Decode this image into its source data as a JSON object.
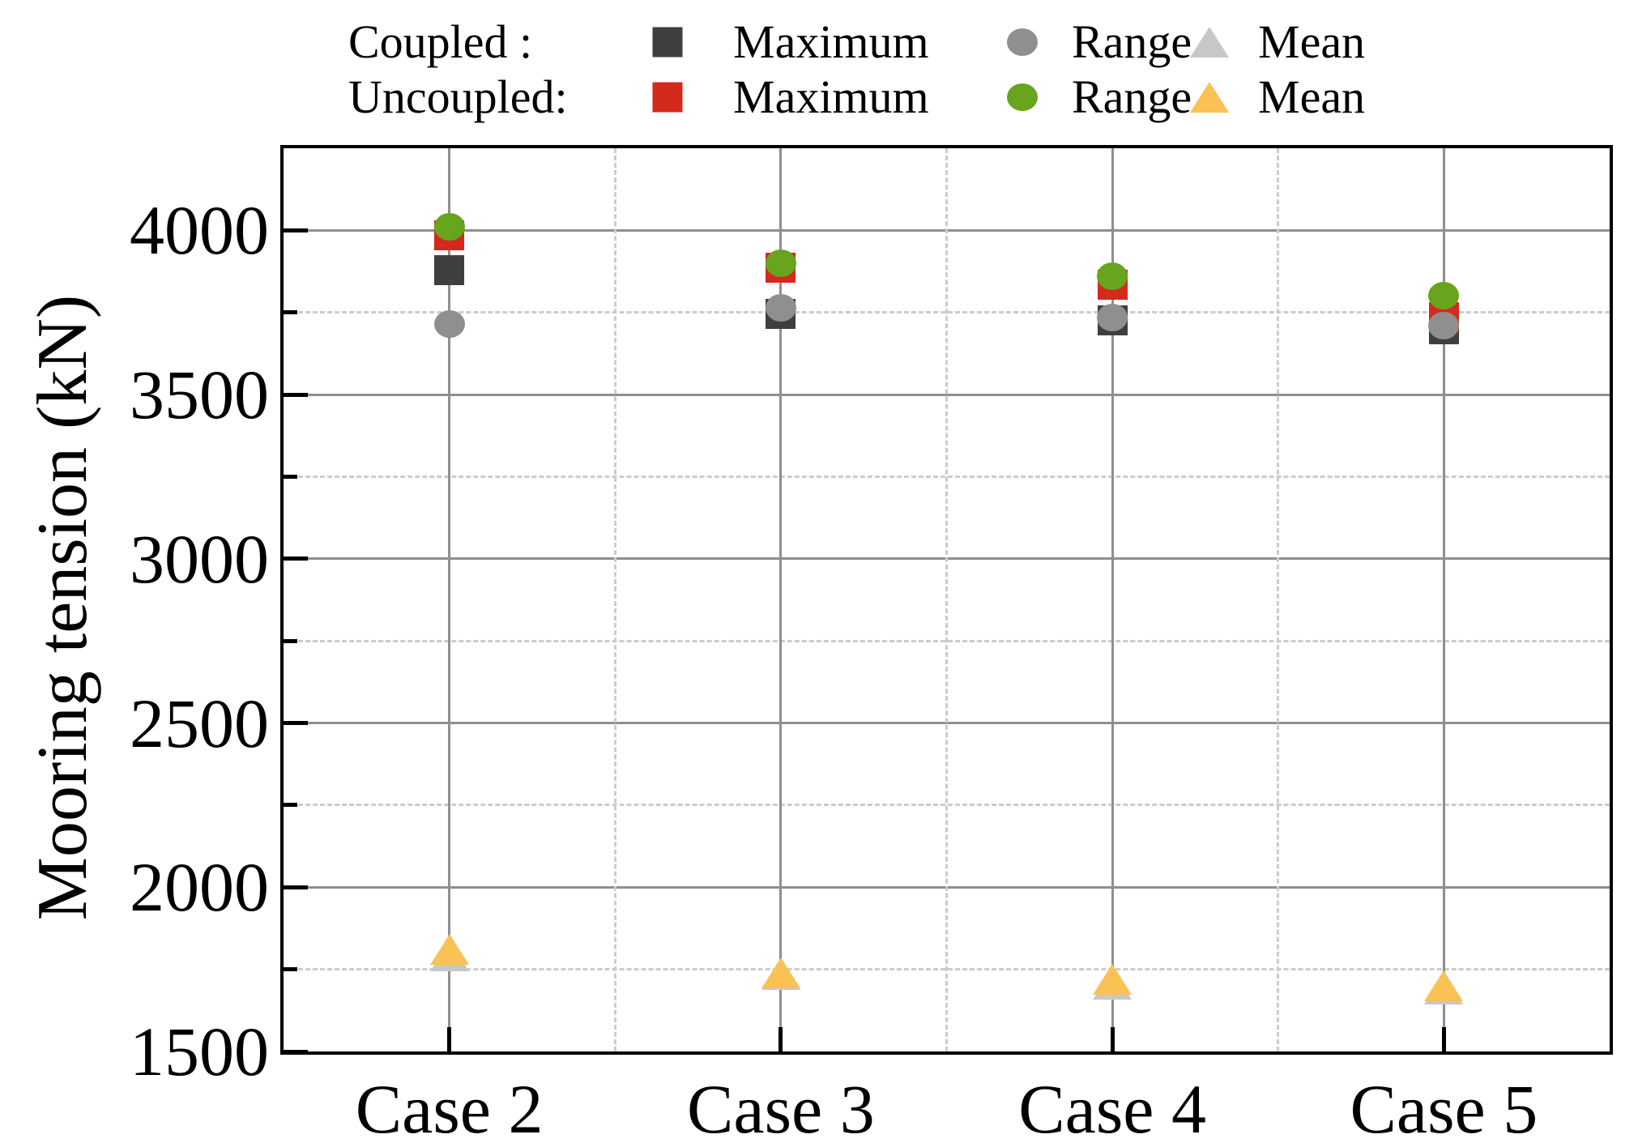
{
  "legend": {
    "rows": [
      {
        "label": "Coupled :",
        "items": [
          {
            "marker": "square-icon",
            "color": "#3f3f3f",
            "label": "Maximum"
          },
          {
            "marker": "circle-icon",
            "color": "#8f8f8f",
            "label": "Range"
          },
          {
            "marker": "triangle-icon",
            "color": "#c8c8c8",
            "label": "Mean"
          }
        ]
      },
      {
        "label": "Uncoupled:",
        "items": [
          {
            "marker": "square-icon",
            "color": "#d42a1e",
            "label": "Maximum"
          },
          {
            "marker": "circle-icon",
            "color": "#68a41c",
            "label": "Range"
          },
          {
            "marker": "triangle-icon",
            "color": "#fac155",
            "label": "Mean"
          }
        ]
      }
    ]
  },
  "chart_data": {
    "type": "scatter",
    "categories": [
      "Case 2",
      "Case 3",
      "Case 4",
      "Case 5"
    ],
    "ylabel": "Mooring tension (kN)",
    "ylim": [
      1500,
      4250
    ],
    "yticks_major": [
      1500,
      2000,
      2500,
      3000,
      3500,
      4000
    ],
    "yticks_minor": [
      1750,
      2250,
      2750,
      3250,
      3750
    ],
    "grid": true,
    "legend_position": "top",
    "series": [
      {
        "name": "Coupled Maximum",
        "marker": "square",
        "color": "#3f3f3f",
        "values": [
          3880,
          3745,
          3725,
          3700
        ]
      },
      {
        "name": "Uncoupled Maximum",
        "marker": "square",
        "color": "#d42a1e",
        "values": [
          3985,
          3885,
          3835,
          3735
        ]
      },
      {
        "name": "Coupled Range",
        "marker": "circle",
        "color": "#8f8f8f",
        "values": [
          3715,
          3765,
          3735,
          3710
        ]
      },
      {
        "name": "Uncoupled Range",
        "marker": "circle",
        "color": "#68a41c",
        "values": [
          4010,
          3900,
          3860,
          3800
        ]
      },
      {
        "name": "Coupled Mean",
        "marker": "triangle",
        "color": "#c8c8c8",
        "values": [
          1790,
          1735,
          1705,
          1690
        ]
      },
      {
        "name": "Uncoupled Mean",
        "marker": "triangle",
        "color": "#fac155",
        "values": [
          1810,
          1740,
          1720,
          1700
        ]
      }
    ]
  },
  "colors": {
    "axis": "#000000",
    "grid_major": "#8f8f8f",
    "grid_minor": "#cccccc",
    "background": "#ffffff"
  }
}
